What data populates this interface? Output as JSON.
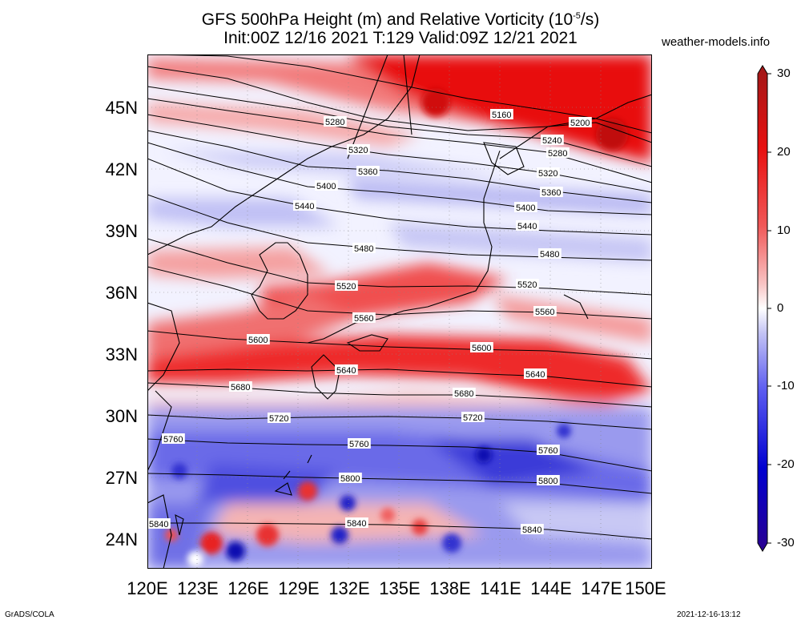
{
  "title_line1": "GFS 500hPa Height (m) and Relative Vorticity (10",
  "title_exp": "-5",
  "title_line1_end": "/s)",
  "title_line2": "Init:00Z 12/16 2021 T:129 Valid:09Z 12/21 2021",
  "site": "weather-models.info",
  "footer_left": "GrADS/COLA",
  "footer_right": "2021-12-16-13:12",
  "lat_labels": [
    "45N",
    "42N",
    "39N",
    "36N",
    "33N",
    "30N",
    "27N",
    "24N"
  ],
  "lon_labels": [
    "120E",
    "123E",
    "126E",
    "129E",
    "132E",
    "135E",
    "138E",
    "141E",
    "144E",
    "147E",
    "150E"
  ],
  "colorbar_labels": [
    "30",
    "20",
    "10",
    "0",
    "-10",
    "-20",
    "-30"
  ],
  "colorbar_colors": [
    "#a01818",
    "#e81010",
    "#f05858",
    "#f8b4b4",
    "#ffffff",
    "#b4b4f0",
    "#5a5af0",
    "#0000d0",
    "#2a0090"
  ],
  "contour_labels": [
    "5160",
    "5200",
    "5240",
    "5280",
    "5320",
    "5360",
    "5400",
    "5440",
    "5480",
    "5520",
    "5560",
    "5600",
    "5640",
    "5680",
    "5720",
    "5760",
    "5800",
    "5840"
  ]
}
